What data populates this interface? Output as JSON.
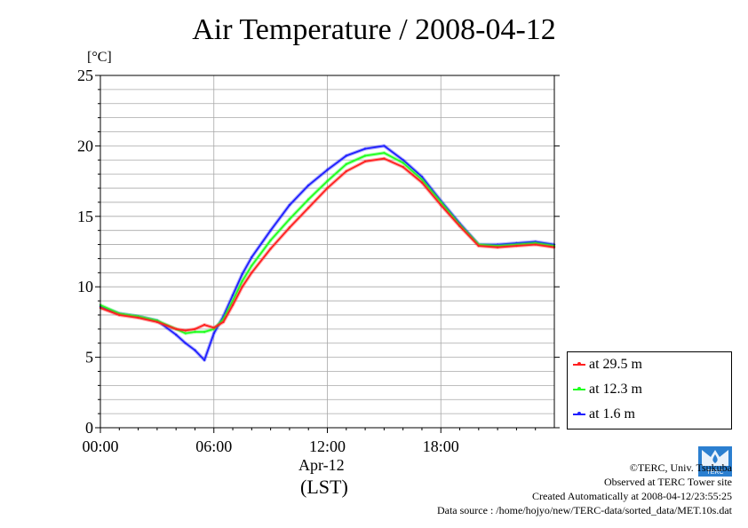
{
  "title": "Air Temperature / 2008-04-12",
  "y_unit_label": "[°C]",
  "x_date_label": "Apr-12",
  "x_unit_label": "(LST)",
  "logo_text": "TERC",
  "footer": {
    "line1": "©TERC, Univ. Tsukuba",
    "line2": "Observed at TERC Tower site",
    "line3": "Created Automatically at 2008-04-12/23:55:25",
    "line4": "Data source : /home/hojyo/new/TERC-data/sorted_data/MET.10s.dat"
  },
  "chart_data": {
    "type": "line",
    "title": "Air Temperature / 2008-04-12",
    "xlabel": "Apr-12 (LST)",
    "ylabel": "[°C]",
    "xlim": [
      0,
      24
    ],
    "ylim": [
      0,
      25
    ],
    "x_ticks": [
      0,
      6,
      12,
      18
    ],
    "x_tick_labels": [
      "00:00",
      "06:00",
      "12:00",
      "18:00"
    ],
    "y_ticks": [
      0,
      5,
      10,
      15,
      20,
      25
    ],
    "y_tick_labels": [
      "0",
      "5",
      "10",
      "15",
      "20",
      "25"
    ],
    "grid": true,
    "legend_position": "bottom-right, outside plot",
    "series": [
      {
        "name": "at 29.5 m",
        "color": "#ff2020",
        "x": [
          0,
          1,
          2,
          3,
          4,
          4.5,
          5,
          5.5,
          6,
          6.5,
          7,
          7.5,
          8,
          9,
          10,
          11,
          12,
          13,
          14,
          15,
          16,
          17,
          18,
          19,
          20,
          21,
          22,
          23,
          24
        ],
        "values": [
          8.5,
          8.0,
          7.8,
          7.5,
          7.0,
          6.9,
          7.0,
          7.3,
          7.1,
          7.5,
          8.7,
          10.0,
          11.0,
          12.7,
          14.2,
          15.6,
          17.0,
          18.2,
          18.9,
          19.1,
          18.5,
          17.4,
          15.8,
          14.3,
          12.9,
          12.8,
          12.9,
          13.0,
          12.8
        ]
      },
      {
        "name": "at 12.3 m",
        "color": "#20ff20",
        "x": [
          0,
          1,
          2,
          3,
          4,
          4.5,
          5,
          5.5,
          6,
          6.5,
          7,
          7.5,
          8,
          9,
          10,
          11,
          12,
          13,
          14,
          15,
          16,
          17,
          18,
          19,
          20,
          21,
          22,
          23,
          24
        ],
        "values": [
          8.7,
          8.1,
          7.9,
          7.6,
          7.0,
          6.7,
          6.8,
          6.8,
          7.0,
          7.7,
          9.0,
          10.4,
          11.5,
          13.3,
          14.8,
          16.2,
          17.5,
          18.7,
          19.3,
          19.5,
          18.8,
          17.6,
          16.0,
          14.4,
          13.0,
          12.9,
          13.0,
          13.1,
          12.9
        ]
      },
      {
        "name": "at 1.6 m",
        "color": "#2020ff",
        "x": [
          0,
          1,
          2,
          3,
          4,
          4.5,
          5,
          5.5,
          6,
          6.5,
          7,
          7.5,
          8,
          9,
          10,
          11,
          12,
          13,
          14,
          15,
          16,
          17,
          18,
          19,
          20,
          21,
          22,
          23,
          24
        ],
        "values": [
          8.6,
          8.1,
          7.9,
          7.6,
          6.6,
          6.0,
          5.5,
          4.8,
          6.7,
          7.9,
          9.4,
          10.9,
          12.1,
          14.0,
          15.8,
          17.2,
          18.3,
          19.3,
          19.8,
          20.0,
          19.0,
          17.8,
          16.1,
          14.5,
          13.0,
          13.0,
          13.1,
          13.2,
          13.0
        ]
      }
    ]
  }
}
